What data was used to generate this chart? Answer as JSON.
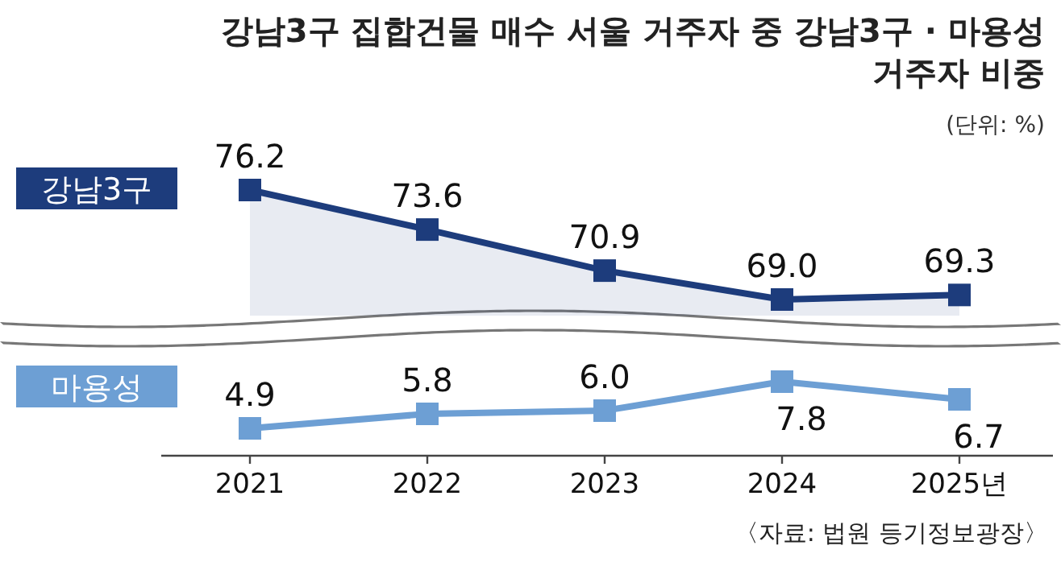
{
  "chart_data": [
    {
      "type": "line",
      "title": "강남3구 집합건물 매수 서울 거주자 중 강남3구 · 마용성 거주자 비중",
      "subtitle": "(단위: %)",
      "categories": [
        null,
        null,
        null,
        null,
        null
      ],
      "series": [
        {
          "name": "강남3구",
          "type": "area",
          "color": "#1d3c7c",
          "values": [
            76.2,
            73.6,
            70.9,
            69.0,
            69.3
          ],
          "value_labels": [
            "76.2",
            "73.6",
            "70.9",
            "69.0",
            "69.3"
          ]
        }
      ],
      "marker": "square",
      "legend": "left",
      "tick_labels": false
    },
    {
      "type": "line",
      "categories": [
        "2021",
        "2022",
        "2023",
        "2024",
        "2025년"
      ],
      "series": [
        {
          "name": "마용성",
          "color": "#6d9fd4",
          "values": [
            4.9,
            5.8,
            6.0,
            7.8,
            6.7
          ],
          "value_labels": [
            "4.9",
            "5.8",
            "6.0",
            "7.8",
            "6.7"
          ]
        }
      ],
      "marker": "square",
      "legend": "left",
      "annotations": [
        "〈자료: 법원 등기정보광장〉"
      ]
    }
  ]
}
